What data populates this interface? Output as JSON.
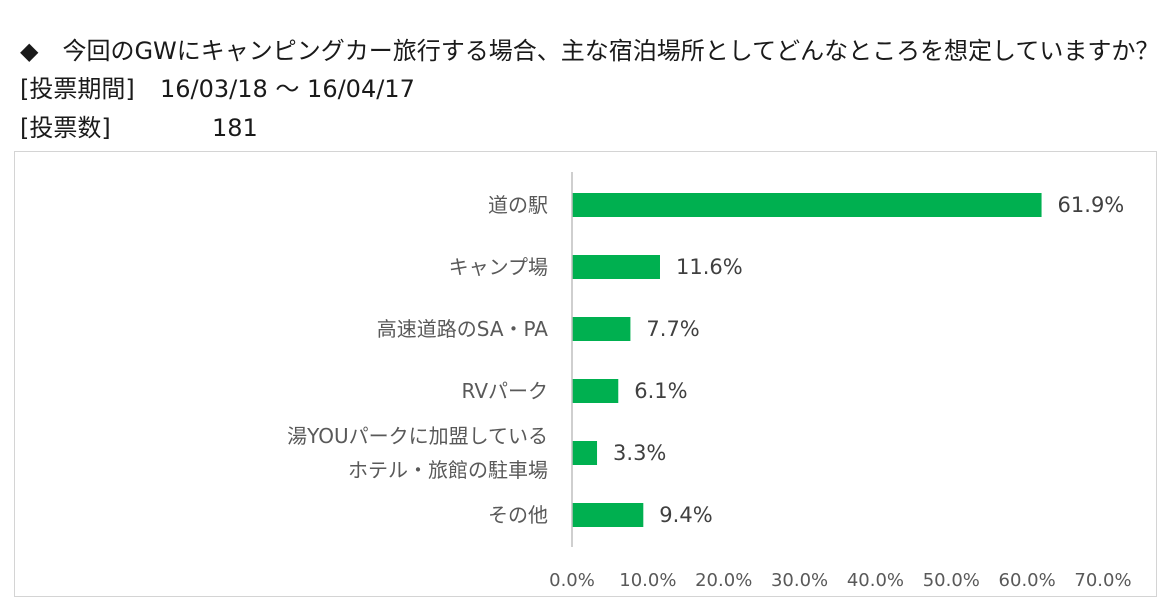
{
  "header": {
    "question": "◆　今回のGWにキャンピングカー旅行する場合、主な宿泊場所としてどんなところを想定していますか？",
    "period_label": "[投票期間]",
    "period_value": "16/03/18 〜 16/04/17",
    "votes_label": "[投票数]",
    "votes_value": "181"
  },
  "chart_data": {
    "type": "bar",
    "orientation": "horizontal",
    "categories": [
      [
        "道の駅"
      ],
      [
        "キャンプ場"
      ],
      [
        "高速道路のSA・PA"
      ],
      [
        "RVパーク"
      ],
      [
        "湯YOUパークに加盟している",
        "ホテル・旅館の駐車場"
      ],
      [
        "その他"
      ]
    ],
    "values": [
      61.9,
      11.6,
      7.7,
      6.1,
      3.3,
      9.4
    ],
    "data_labels": [
      "61.9%",
      "11.6%",
      "7.7%",
      "6.1%",
      "3.3%",
      "9.4%"
    ],
    "xlim": [
      0,
      70
    ],
    "xticks": [
      0,
      10,
      20,
      30,
      40,
      50,
      60,
      70
    ],
    "xtick_labels": [
      "0.0%",
      "10.0%",
      "20.0%",
      "30.0%",
      "40.0%",
      "50.0%",
      "60.0%",
      "70.0%"
    ],
    "bar_color": "#00b050",
    "grid": false,
    "legend": "none"
  }
}
